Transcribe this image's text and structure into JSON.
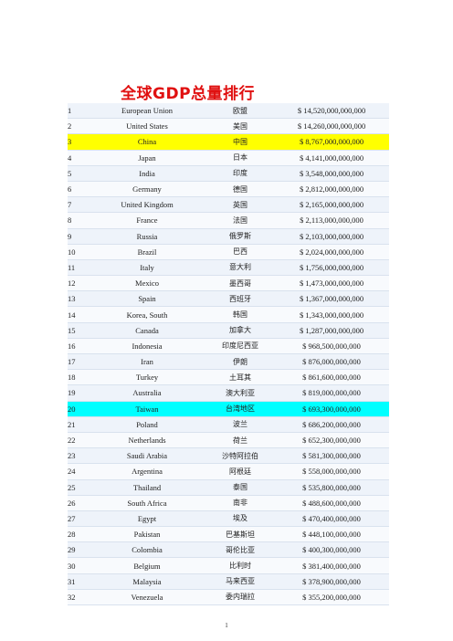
{
  "title": "全球GDP总量排行",
  "page_number": "1",
  "rows": [
    {
      "rank": "1",
      "en": "European Union",
      "cn": "欧盟",
      "gdp": "$ 14,520,000,000,000"
    },
    {
      "rank": "2",
      "en": "United States",
      "cn": "美国",
      "gdp": "$ 14,260,000,000,000"
    },
    {
      "rank": "3",
      "en": "China",
      "cn": "中国",
      "gdp": "$ 8,767,000,000,000",
      "highlight": "#ffff00"
    },
    {
      "rank": "4",
      "en": "Japan",
      "cn": "日本",
      "gdp": "$ 4,141,000,000,000"
    },
    {
      "rank": "5",
      "en": "India",
      "cn": "印度",
      "gdp": "$ 3,548,000,000,000"
    },
    {
      "rank": "6",
      "en": "Germany",
      "cn": "德国",
      "gdp": "$ 2,812,000,000,000"
    },
    {
      "rank": "7",
      "en": "United Kingdom",
      "cn": "英国",
      "gdp": "$ 2,165,000,000,000"
    },
    {
      "rank": "8",
      "en": "France",
      "cn": "法国",
      "gdp": "$ 2,113,000,000,000"
    },
    {
      "rank": "9",
      "en": "Russia",
      "cn": "俄罗斯",
      "gdp": "$ 2,103,000,000,000"
    },
    {
      "rank": "10",
      "en": "Brazil",
      "cn": "巴西",
      "gdp": "$ 2,024,000,000,000"
    },
    {
      "rank": "11",
      "en": "Italy",
      "cn": "意大利",
      "gdp": "$ 1,756,000,000,000"
    },
    {
      "rank": "12",
      "en": "Mexico",
      "cn": "墨西哥",
      "gdp": "$ 1,473,000,000,000"
    },
    {
      "rank": "13",
      "en": "Spain",
      "cn": "西班牙",
      "gdp": "$ 1,367,000,000,000"
    },
    {
      "rank": "14",
      "en": "Korea, South",
      "cn": "韩国",
      "gdp": "$ 1,343,000,000,000"
    },
    {
      "rank": "15",
      "en": "Canada",
      "cn": "加拿大",
      "gdp": "$ 1,287,000,000,000"
    },
    {
      "rank": "16",
      "en": "Indonesia",
      "cn": "印度尼西亚",
      "gdp": "$ 968,500,000,000"
    },
    {
      "rank": "17",
      "en": "Iran",
      "cn": "伊朗",
      "gdp": "$ 876,000,000,000"
    },
    {
      "rank": "18",
      "en": "Turkey",
      "cn": "土耳其",
      "gdp": "$ 861,600,000,000"
    },
    {
      "rank": "19",
      "en": "Australia",
      "cn": "澳大利亚",
      "gdp": "$ 819,000,000,000"
    },
    {
      "rank": "20",
      "en": "Taiwan",
      "cn": "台湾地区",
      "gdp": "$ 693,300,000,000",
      "highlight": "#00ffff"
    },
    {
      "rank": "21",
      "en": "Poland",
      "cn": "波兰",
      "gdp": "$ 686,200,000,000"
    },
    {
      "rank": "22",
      "en": "Netherlands",
      "cn": "荷兰",
      "gdp": "$ 652,300,000,000"
    },
    {
      "rank": "23",
      "en": "Saudi Arabia",
      "cn": "沙特阿拉伯",
      "gdp": "$ 581,300,000,000"
    },
    {
      "rank": "24",
      "en": "Argentina",
      "cn": "阿根廷",
      "gdp": "$ 558,000,000,000"
    },
    {
      "rank": "25",
      "en": "Thailand",
      "cn": "泰国",
      "gdp": "$ 535,800,000,000"
    },
    {
      "rank": "26",
      "en": "South Africa",
      "cn": "南非",
      "gdp": "$ 488,600,000,000"
    },
    {
      "rank": "27",
      "en": "Egypt",
      "cn": "埃及",
      "gdp": "$ 470,400,000,000"
    },
    {
      "rank": "28",
      "en": "Pakistan",
      "cn": "巴基斯坦",
      "gdp": "$ 448,100,000,000"
    },
    {
      "rank": "29",
      "en": "Colombia",
      "cn": "哥伦比亚",
      "gdp": "$ 400,300,000,000"
    },
    {
      "rank": "30",
      "en": "Belgium",
      "cn": "比利时",
      "gdp": "$ 381,400,000,000"
    },
    {
      "rank": "31",
      "en": "Malaysia",
      "cn": "马来西亚",
      "gdp": "$ 378,900,000,000"
    },
    {
      "rank": "32",
      "en": "Venezuela",
      "cn": "委内瑞拉",
      "gdp": "$ 355,200,000,000"
    }
  ]
}
